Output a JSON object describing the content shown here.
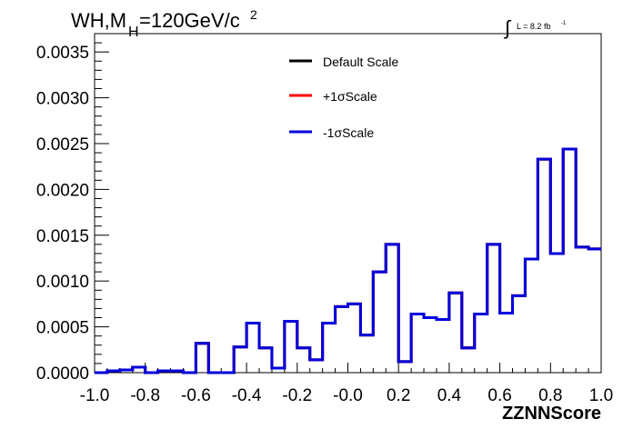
{
  "chart_data": {
    "type": "histogram",
    "title": {
      "main": "WH,M",
      "sub": "H",
      "rest": "=120GeV/c",
      "sup": "2"
    },
    "lumi": {
      "integral": "∫",
      "label": "L = 8.2 fb",
      "sup": "-1"
    },
    "xlabel": "ZZNNScore",
    "ylabel": "",
    "xlim": [
      -1.0,
      1.0
    ],
    "ylim": [
      0.0,
      0.0037
    ],
    "x_ticks": [
      "-1.0",
      "-0.8",
      "-0.6",
      "-0.4",
      "-0.2",
      "-0.0",
      "0.2",
      "0.4",
      "0.6",
      "0.8",
      "1.0"
    ],
    "x_tick_values": [
      -1.0,
      -0.8,
      -0.6,
      -0.4,
      -0.2,
      0.0,
      0.2,
      0.4,
      0.6,
      0.8,
      1.0
    ],
    "y_ticks": [
      "0.0000",
      "0.0005",
      "0.0010",
      "0.0015",
      "0.0020",
      "0.0025",
      "0.0030",
      "0.0035"
    ],
    "y_tick_values": [
      0.0,
      0.0005,
      0.001,
      0.0015,
      0.002,
      0.0025,
      0.003,
      0.0035
    ],
    "bin_edges": [
      -1.0,
      -0.95,
      -0.9,
      -0.85,
      -0.8,
      -0.75,
      -0.7,
      -0.65,
      -0.6,
      -0.55,
      -0.5,
      -0.45,
      -0.4,
      -0.35,
      -0.3,
      -0.25,
      -0.2,
      -0.15,
      -0.1,
      -0.05,
      0.0,
      0.05,
      0.1,
      0.15,
      0.2,
      0.25,
      0.3,
      0.35,
      0.4,
      0.45,
      0.5,
      0.55,
      0.6,
      0.65,
      0.7,
      0.75,
      0.8,
      0.85,
      0.9,
      0.95,
      1.0
    ],
    "series": [
      {
        "name": "Default Scale",
        "color": "#000000",
        "values": [
          0.0,
          2e-05,
          3e-05,
          6e-05,
          0.0,
          2e-05,
          2e-05,
          0.0,
          0.00032,
          0.0,
          0.0,
          0.00028,
          0.00054,
          0.00027,
          5e-05,
          0.00056,
          0.00027,
          0.00014,
          0.00054,
          0.00072,
          0.00075,
          0.00041,
          0.0011,
          0.0014,
          0.00012,
          0.00064,
          0.0006,
          0.00058,
          0.00087,
          0.00027,
          0.00064,
          0.0014,
          0.00065,
          0.00084,
          0.00124,
          0.00233,
          0.0013,
          0.00244,
          0.00137,
          0.00135
        ]
      },
      {
        "name": "+1σScale",
        "color": "#ff0000",
        "values": [
          0.0,
          2e-05,
          3e-05,
          6e-05,
          0.0,
          2e-05,
          2e-05,
          0.0,
          0.00032,
          0.0,
          0.0,
          0.00028,
          0.00054,
          0.00027,
          5e-05,
          0.00056,
          0.00027,
          0.00014,
          0.00054,
          0.00072,
          0.00075,
          0.00041,
          0.0011,
          0.0014,
          0.00012,
          0.00064,
          0.0006,
          0.00058,
          0.00087,
          0.00027,
          0.00064,
          0.0014,
          0.00065,
          0.00084,
          0.00124,
          0.00233,
          0.0013,
          0.00244,
          0.00137,
          0.00135
        ]
      },
      {
        "name": "-1σScale",
        "color": "#0000dd",
        "values": [
          0.0,
          2e-05,
          3e-05,
          6e-05,
          0.0,
          2e-05,
          2e-05,
          0.0,
          0.00032,
          0.0,
          0.0,
          0.00028,
          0.00054,
          0.00027,
          5e-05,
          0.00056,
          0.00027,
          0.00014,
          0.00054,
          0.00072,
          0.00075,
          0.00041,
          0.0011,
          0.0014,
          0.00012,
          0.00064,
          0.0006,
          0.00058,
          0.00087,
          0.00027,
          0.00064,
          0.0014,
          0.00065,
          0.00084,
          0.00124,
          0.00233,
          0.0013,
          0.00244,
          0.00137,
          0.00135
        ]
      }
    ],
    "legend": {
      "placement": "top-center",
      "entries": [
        "Default Scale",
        "+1σScale",
        "-1σScale"
      ]
    },
    "grid": false
  }
}
